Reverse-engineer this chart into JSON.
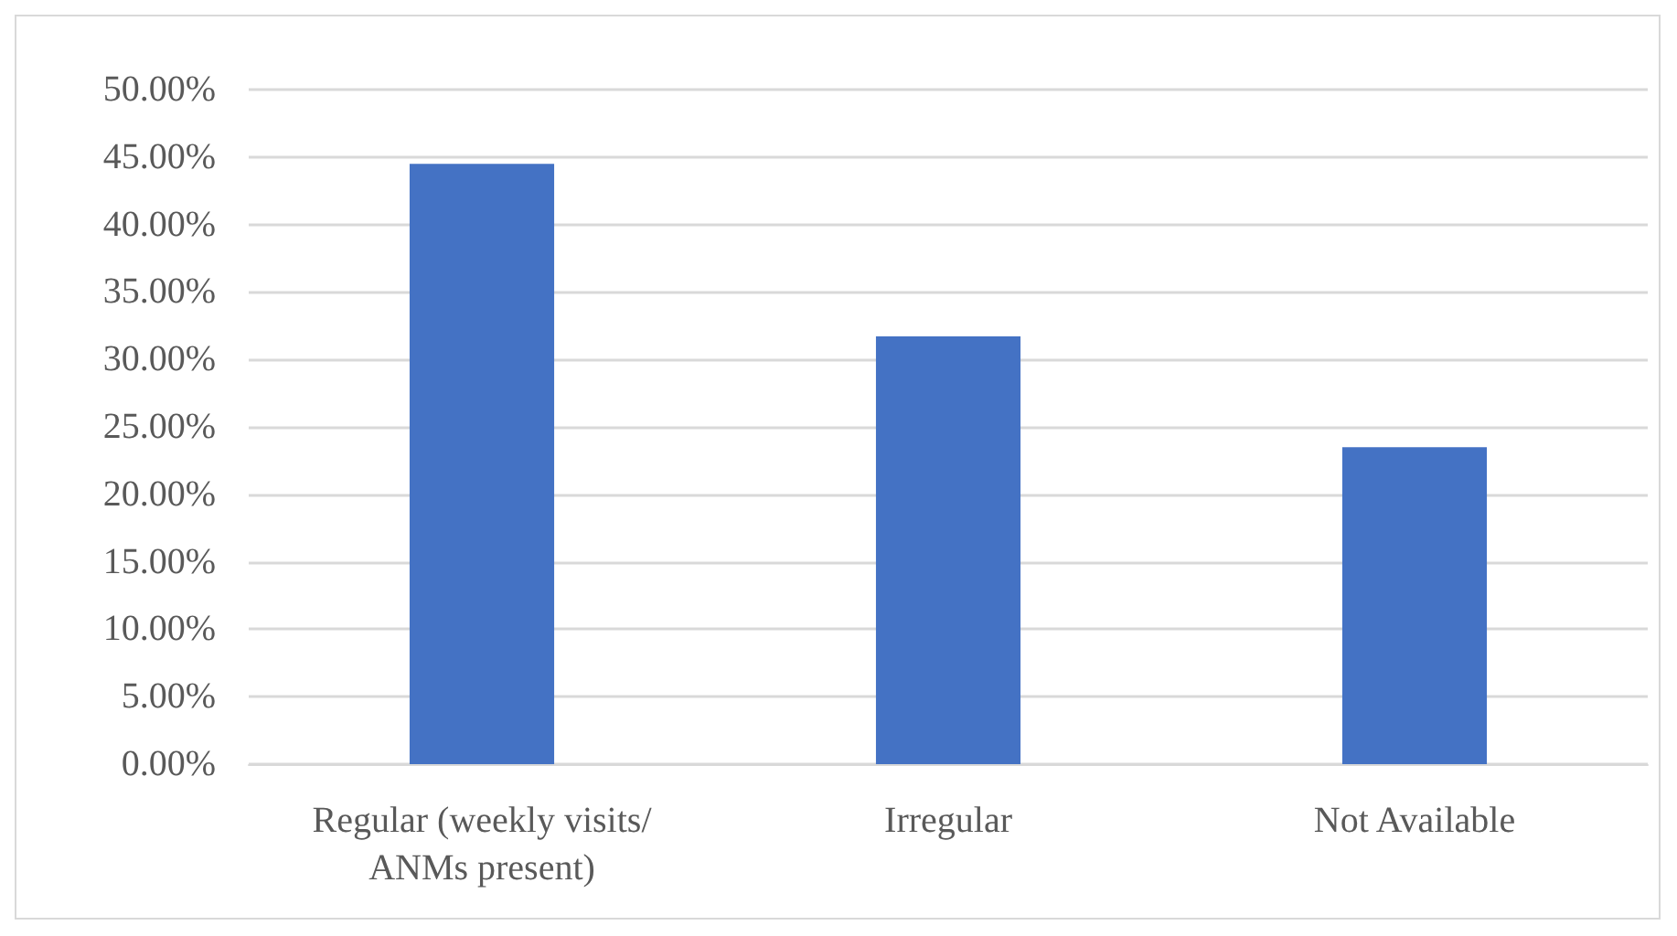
{
  "chart_data": {
    "type": "bar",
    "categories": [
      "Regular (weekly visits/ANMs present)",
      "Irregular",
      "Not Available"
    ],
    "values": [
      44.5,
      31.7,
      23.5
    ],
    "color": "#4472c4",
    "ylim": [
      0,
      50
    ],
    "yticks": [
      {
        "value": 0,
        "label": "0.00%"
      },
      {
        "value": 5,
        "label": "5.00%"
      },
      {
        "value": 10,
        "label": "10.00%"
      },
      {
        "value": 15,
        "label": "15.00%"
      },
      {
        "value": 20,
        "label": "20.00%"
      },
      {
        "value": 25,
        "label": "25.00%"
      },
      {
        "value": 30,
        "label": "30.00%"
      },
      {
        "value": 35,
        "label": "35.00%"
      },
      {
        "value": 40,
        "label": "40.00%"
      },
      {
        "value": 45,
        "label": "45.00%"
      },
      {
        "value": 50,
        "label": "50.00%"
      }
    ],
    "grid": "y"
  }
}
